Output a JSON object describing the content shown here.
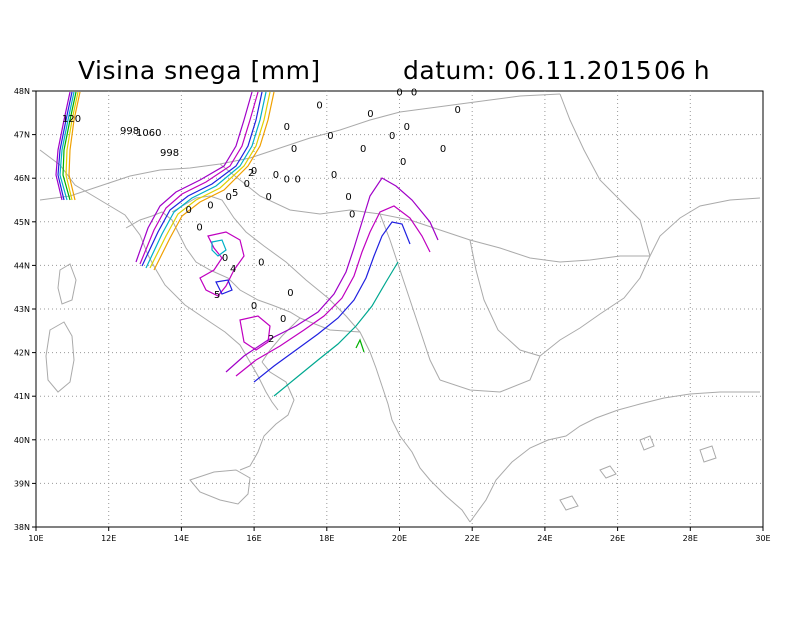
{
  "title": "Visina snega [mm]",
  "date_label": "datum: 06.11.2015",
  "hour_label": "06 h",
  "axes": {
    "lon_ticks": [
      "10E",
      "12E",
      "14E",
      "16E",
      "18E",
      "20E",
      "22E",
      "24E",
      "26E",
      "28E",
      "30E"
    ],
    "lat_ticks": [
      "38N",
      "39N",
      "40N",
      "41N",
      "42N",
      "43N",
      "44N",
      "45N",
      "46N",
      "47N",
      "48N"
    ],
    "lon_range": [
      10,
      30
    ],
    "lat_range": [
      38,
      48
    ],
    "grid": "dotted"
  },
  "contour_labels": [
    "120",
    "998",
    "1060",
    "998",
    "5",
    "2",
    "5",
    "4",
    "2"
  ],
  "zero_markers": [
    "0",
    "0",
    "0",
    "0",
    "0",
    "0",
    "0",
    "0",
    "0",
    "0",
    "0",
    "0",
    "0",
    "0",
    "0",
    "0",
    "0",
    "0",
    "0",
    "0",
    "0",
    "0",
    "0",
    "0",
    "0",
    "0",
    "0",
    "0",
    "0",
    "0",
    "0"
  ],
  "colors": {
    "coast": "#aaaaaa",
    "grid": "#9a9a9a",
    "contour_purple": "#a000c8",
    "contour_magenta": "#c000c0",
    "contour_blue": "#2020e0",
    "contour_cyan": "#00b0c8",
    "contour_teal": "#00a890",
    "contour_green": "#00b000",
    "contour_yellow": "#e0d000",
    "contour_orange": "#f0a000"
  }
}
